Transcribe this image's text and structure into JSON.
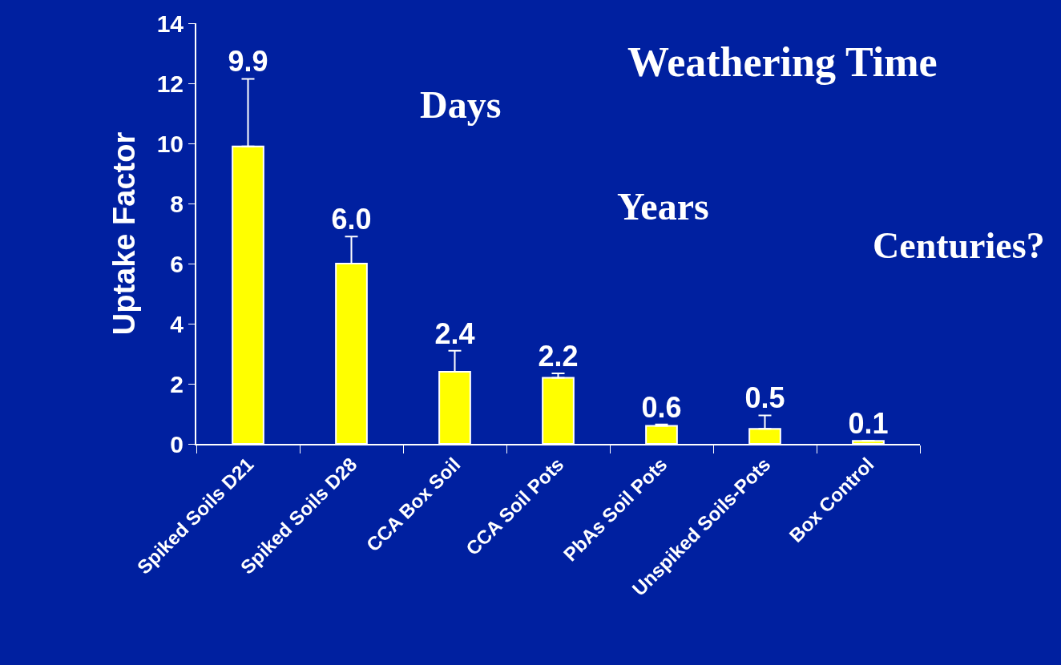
{
  "chart_data": {
    "type": "bar",
    "categories": [
      "Spiked Soils D21",
      "Spiked Soils D28",
      "CCA Box Soil",
      "CCA Soil Pots",
      "PbAs Soil Pots",
      "Unspiked Soils-Pots",
      "Box Control"
    ],
    "values": [
      9.9,
      6.0,
      2.4,
      2.2,
      0.6,
      0.5,
      0.1
    ],
    "color": "#ffff00",
    "errors": [
      [
        9.9,
        12.15
      ],
      [
        6.0,
        6.9
      ],
      [
        2.4,
        3.1
      ],
      [
        2.2,
        2.35
      ],
      [
        0.6,
        0.65
      ],
      [
        0.5,
        0.95
      ],
      null
    ],
    "value_labels": [
      "9.9",
      "6.0",
      "2.4",
      "2.2",
      "0.6",
      "0.5",
      "0.1"
    ],
    "ylabel": "Uptake Factor",
    "ylim": [
      0,
      14
    ],
    "yticks": [
      0,
      2,
      4,
      6,
      8,
      10,
      12,
      14
    ],
    "grid": false,
    "annotations": [
      "Weathering Time",
      "Days",
      "Years",
      "Centuries?"
    ]
  }
}
